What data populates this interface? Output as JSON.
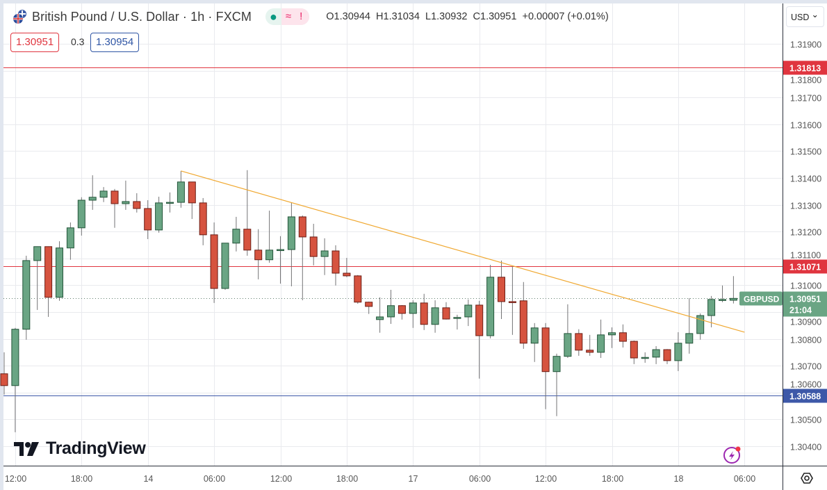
{
  "header": {
    "title": "British Pound / U.S. Dollar · 1h · FXCM",
    "status_icons": [
      "market-open-dot-icon",
      "delayed-data-icon",
      "alert-icon"
    ],
    "status_symbols": {
      "delayed": "≈",
      "alert": "!"
    },
    "ohlc": {
      "open": "O1.30944",
      "high": "H1.31034",
      "low": "L1.30932",
      "close": "C1.30951",
      "change": "+0.00007 (+0.01%)"
    },
    "bid": "1.30951",
    "spread": "0.3",
    "ask": "1.30954"
  },
  "price_axis": {
    "currency": "USD",
    "currency_chevron": "⌄",
    "settings_icon": "gear-hexagon-icon"
  },
  "branding": {
    "logo_text": "TradingView"
  },
  "colors": {
    "up": "#6aa584",
    "up_border": "#24553a",
    "down": "#d6533f",
    "down_border": "#6b1e16",
    "wick": "#737375",
    "resistance": "#e0353f",
    "support": "#3d58a8",
    "trendline": "#f0a830",
    "last_price": "#6aa584",
    "grid": "#e9eaee"
  },
  "chart_data": {
    "type": "candlestick",
    "symbol": "GBPUSD",
    "interval": "1h",
    "ylim": [
      1.3035,
      1.3205
    ],
    "grid": true,
    "y_ticks": [
      "1.31900",
      "1.31800",
      "1.31700",
      "1.31600",
      "1.31500",
      "1.31400",
      "1.31300",
      "1.31200",
      "1.31100",
      "1.31000",
      "1.30900",
      "1.30800",
      "1.30700",
      "1.30600",
      "1.30500",
      "1.30400"
    ],
    "x_ticks": [
      {
        "candle": 1,
        "label": "12:00"
      },
      {
        "candle": 7,
        "label": "18:00"
      },
      {
        "candle": 13,
        "label": "14"
      },
      {
        "candle": 19,
        "label": "06:00"
      },
      {
        "candle": 25,
        "label": "12:00"
      },
      {
        "candle": 31,
        "label": "18:00"
      },
      {
        "candle": 37,
        "label": "17"
      },
      {
        "candle": 43,
        "label": "06:00"
      },
      {
        "candle": 49,
        "label": "12:00"
      },
      {
        "candle": 55,
        "label": "18:00"
      },
      {
        "candle": 61,
        "label": "18"
      },
      {
        "candle": 67,
        "label": "06:00"
      }
    ],
    "ohlc_fields": [
      "open",
      "high",
      "low",
      "close"
    ],
    "candles": [
      [
        1.3067,
        1.3075,
        1.30592,
        1.30626
      ],
      [
        1.30626,
        1.30841,
        1.30452,
        1.30836
      ],
      [
        1.30836,
        1.3111,
        1.30797,
        1.31092
      ],
      [
        1.31092,
        1.31145,
        1.30908,
        1.31144
      ],
      [
        1.31144,
        1.31145,
        1.30882,
        1.30955
      ],
      [
        1.30955,
        1.31164,
        1.30942,
        1.31139
      ],
      [
        1.31139,
        1.31234,
        1.31095,
        1.31214
      ],
      [
        1.31214,
        1.31328,
        1.31185,
        1.31317
      ],
      [
        1.31317,
        1.3141,
        1.31281,
        1.31328
      ],
      [
        1.31328,
        1.31366,
        1.3131,
        1.31351
      ],
      [
        1.31351,
        1.31359,
        1.31214,
        1.31304
      ],
      [
        1.31304,
        1.3139,
        1.31281,
        1.31312
      ],
      [
        1.31312,
        1.31343,
        1.31271,
        1.31286
      ],
      [
        1.31286,
        1.31317,
        1.31172,
        1.31206
      ],
      [
        1.31206,
        1.3133,
        1.31196,
        1.31307
      ],
      [
        1.31307,
        1.31346,
        1.31271,
        1.31309
      ],
      [
        1.31309,
        1.31426,
        1.31289,
        1.31385
      ],
      [
        1.31385,
        1.31385,
        1.31247,
        1.31307
      ],
      [
        1.31307,
        1.31325,
        1.31149,
        1.31188
      ],
      [
        1.31188,
        1.31234,
        1.30934,
        1.30988
      ],
      [
        1.30988,
        1.31157,
        1.30983,
        1.31157
      ],
      [
        1.31157,
        1.31255,
        1.31126,
        1.31209
      ],
      [
        1.31209,
        1.31429,
        1.3111,
        1.31131
      ],
      [
        1.31131,
        1.31209,
        1.31022,
        1.31095
      ],
      [
        1.31095,
        1.31278,
        1.31084,
        1.31131
      ],
      [
        1.31131,
        1.31183,
        1.31006,
        1.31133
      ],
      [
        1.31133,
        1.31307,
        1.30996,
        1.31255
      ],
      [
        1.31255,
        1.3126,
        1.30944,
        1.3118
      ],
      [
        1.3118,
        1.31229,
        1.31074,
        1.31107
      ],
      [
        1.31107,
        1.31175,
        1.31038,
        1.31128
      ],
      [
        1.31128,
        1.31149,
        1.30999,
        1.31045
      ],
      [
        1.31045,
        1.31102,
        1.3103,
        1.31035
      ],
      [
        1.31035,
        1.31038,
        1.30931,
        1.30937
      ],
      [
        1.30937,
        1.30939,
        1.30893,
        1.30921
      ],
      [
        1.30872,
        1.30955,
        1.30823,
        1.30882
      ],
      [
        1.30882,
        1.30983,
        1.30856,
        1.30924
      ],
      [
        1.30924,
        1.30926,
        1.30872,
        1.30895
      ],
      [
        1.30895,
        1.30944,
        1.30841,
        1.30934
      ],
      [
        1.30934,
        1.30968,
        1.30833,
        1.30854
      ],
      [
        1.30854,
        1.30944,
        1.30823,
        1.30916
      ],
      [
        1.30916,
        1.30937,
        1.30872,
        1.30874
      ],
      [
        1.30877,
        1.3089,
        1.30835,
        1.3088
      ],
      [
        1.30882,
        1.30947,
        1.30848,
        1.30926
      ],
      [
        1.30926,
        1.30942,
        1.30652,
        1.30812
      ],
      [
        1.30812,
        1.31076,
        1.30802,
        1.3103
      ],
      [
        1.3103,
        1.31092,
        1.30874,
        1.30939
      ],
      [
        1.30939,
        1.31071,
        1.30815,
        1.30937
      ],
      [
        1.30942,
        1.31012,
        1.30763,
        1.30784
      ],
      [
        1.30784,
        1.30859,
        1.30714,
        1.30841
      ],
      [
        1.30841,
        1.30859,
        1.30538,
        1.30678
      ],
      [
        1.30678,
        1.30745,
        1.30512,
        1.30735
      ],
      [
        1.30735,
        1.30929,
        1.30729,
        1.3082
      ],
      [
        1.3082,
        1.30836,
        1.30737,
        1.30758
      ],
      [
        1.30758,
        1.30815,
        1.30737,
        1.3075
      ],
      [
        1.3075,
        1.30872,
        1.30729,
        1.30815
      ],
      [
        1.30815,
        1.30843,
        1.30766,
        1.30823
      ],
      [
        1.30823,
        1.30854,
        1.30768,
        1.30791
      ],
      [
        1.30791,
        1.30794,
        1.30706,
        1.30729
      ],
      [
        1.30729,
        1.3075,
        1.30711,
        1.30731
      ],
      [
        1.30732,
        1.30773,
        1.30706,
        1.3076
      ],
      [
        1.3076,
        1.30762,
        1.30706,
        1.30719
      ],
      [
        1.30719,
        1.30825,
        1.3068,
        1.30784
      ],
      [
        1.30784,
        1.30952,
        1.30745,
        1.3082
      ],
      [
        1.3082,
        1.30895,
        1.30797,
        1.30887
      ],
      [
        1.30887,
        1.3096,
        1.30843,
        1.30947
      ],
      [
        1.30947,
        1.30999,
        1.30937,
        1.30947
      ],
      [
        1.30944,
        1.31034,
        1.30932,
        1.30951
      ]
    ],
    "horizontal_lines": [
      {
        "price": 1.31813,
        "label": "1.31813",
        "color": "#e0353f"
      },
      {
        "price": 1.31071,
        "label": "1.31071",
        "color": "#e0353f"
      },
      {
        "price": 1.30588,
        "label": "1.30588",
        "color": "#3d58a8"
      }
    ],
    "trendline": {
      "from": {
        "candle": 16,
        "price": 1.31426
      },
      "to": {
        "candle": 67,
        "price": 1.30825
      }
    },
    "last_price": {
      "symbol_label": "GBPUSD",
      "price": 1.30951,
      "price_label": "1.30951",
      "countdown": "21:04"
    }
  }
}
